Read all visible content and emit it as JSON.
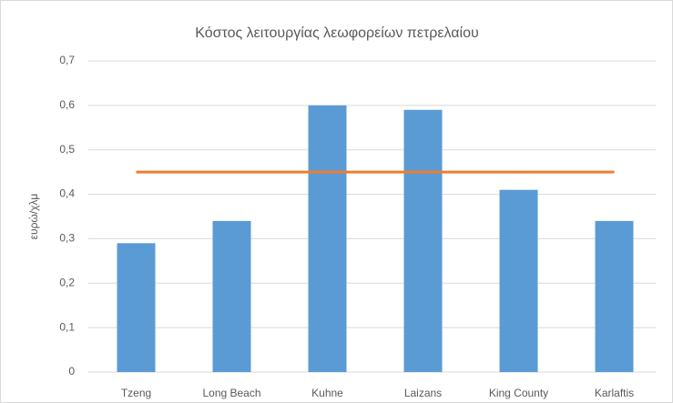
{
  "chart_data": {
    "type": "bar",
    "title": "Κόστος λειτουργίας λεωφορείων πετρελαίου",
    "ylabel": "ευρώ/χλμ",
    "categories": [
      "Tzeng",
      "Long Beach",
      "Kuhne",
      "Laizans",
      "King County",
      "Karlaftis"
    ],
    "series": [
      {
        "type": "bar",
        "color": "#5b9bd5",
        "values": [
          0.29,
          0.34,
          0.6,
          0.59,
          0.41,
          0.34
        ]
      },
      {
        "type": "line",
        "color": "#ed7d31",
        "values": [
          0.45,
          0.45,
          0.45,
          0.45,
          0.45,
          0.45
        ]
      }
    ],
    "ylim": [
      0,
      0.7
    ],
    "yticks": [
      0,
      {
        "value": 0.1,
        "label": "0,1"
      },
      {
        "value": 0.2,
        "label": "0,2"
      },
      {
        "value": 0.3,
        "label": "0,3"
      },
      {
        "value": 0.4,
        "label": "0,4"
      },
      {
        "value": 0.5,
        "label": "0,5"
      },
      {
        "value": 0.6,
        "label": "0,6"
      },
      {
        "value": 0.7,
        "label": "0,7"
      }
    ],
    "grid": true
  }
}
